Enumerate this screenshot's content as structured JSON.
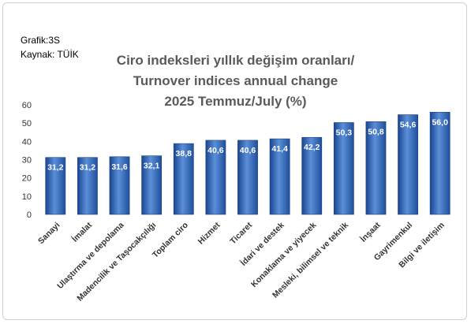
{
  "meta": {
    "graph_id": "Grafik:3S",
    "source": "Kaynak: TÜİK"
  },
  "colors": {
    "bar_dark": "#1f4f9c",
    "bar_light": "#5b8fd8",
    "grid": "#d9d9d9",
    "title": "#5a5a5a"
  },
  "chart_data": {
    "type": "bar",
    "title_lines": [
      "Ciro indeksleri yıllık değişim oranları/",
      "Turnover indices annual change",
      "2025 Temmuz/July (%)"
    ],
    "categories": [
      "Sanayi",
      "İmalat",
      "Ulaştırma ve depolama",
      "Madencilik ve Taşocakçılığı",
      "Toplam ciro",
      "Hizmet",
      "Ticaret",
      "İdari ve destek",
      "Konaklama ve yiyecek",
      "Mesleki, bilimsel ve teknik",
      "İnşaat",
      "Gayrimenkul",
      "Bilgi ve iletişim"
    ],
    "values": [
      31.2,
      31.2,
      31.6,
      32.1,
      38.8,
      40.6,
      40.6,
      41.4,
      42.2,
      50.3,
      50.8,
      54.6,
      56.0
    ],
    "value_labels": [
      "31,2",
      "31,2",
      "31,6",
      "32,1",
      "38,8",
      "40,6",
      "40,6",
      "41,4",
      "42,2",
      "50,3",
      "50,8",
      "54,6",
      "56,0"
    ],
    "yticks": [
      "0",
      "10",
      "20",
      "30",
      "40",
      "50",
      "60"
    ],
    "ylim": [
      0,
      60
    ],
    "grid": false,
    "legend": "none"
  }
}
